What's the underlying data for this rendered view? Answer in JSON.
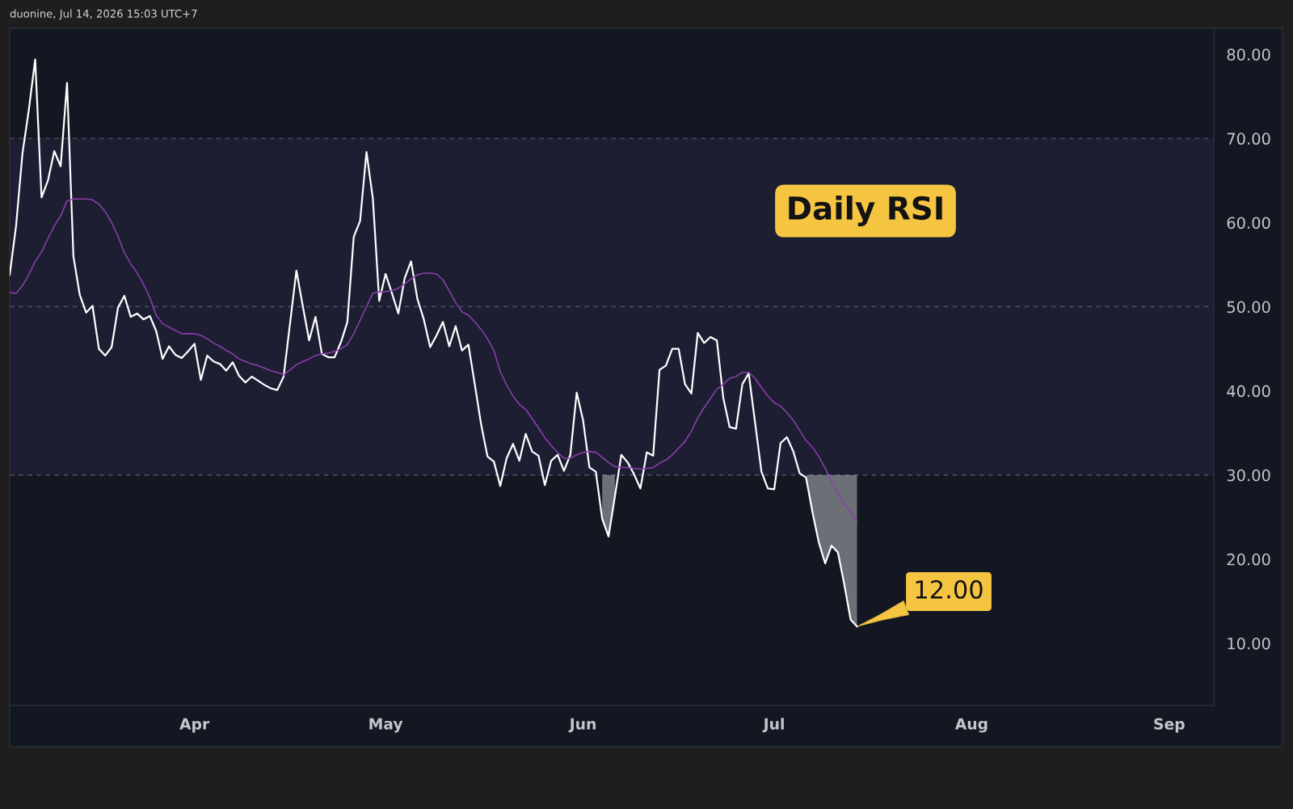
{
  "chart_data": {
    "type": "line",
    "title": "Daily RSI",
    "annotations": [
      "duonine, Jul 14, 2026 15:03 UTC+7",
      {
        "text": "12.00",
        "x": "2026-07-14",
        "y": 12.0
      }
    ],
    "x": [
      "2026-03-03",
      "2026-03-04",
      "2026-03-05",
      "2026-03-06",
      "2026-03-07",
      "2026-03-08",
      "2026-03-09",
      "2026-03-10",
      "2026-03-11",
      "2026-03-12",
      "2026-03-13",
      "2026-03-14",
      "2026-03-15",
      "2026-03-16",
      "2026-03-17",
      "2026-03-18",
      "2026-03-19",
      "2026-03-20",
      "2026-03-21",
      "2026-03-22",
      "2026-03-23",
      "2026-03-24",
      "2026-03-25",
      "2026-03-26",
      "2026-03-27",
      "2026-03-28",
      "2026-03-29",
      "2026-03-30",
      "2026-03-31",
      "2026-04-01",
      "2026-04-02",
      "2026-04-03",
      "2026-04-04",
      "2026-04-05",
      "2026-04-06",
      "2026-04-07",
      "2026-04-08",
      "2026-04-09",
      "2026-04-10",
      "2026-04-11",
      "2026-04-12",
      "2026-04-13",
      "2026-04-14",
      "2026-04-15",
      "2026-04-16",
      "2026-04-17",
      "2026-04-18",
      "2026-04-19",
      "2026-04-20",
      "2026-04-21",
      "2026-04-22",
      "2026-04-23",
      "2026-04-24",
      "2026-04-25",
      "2026-04-26",
      "2026-04-27",
      "2026-04-28",
      "2026-04-29",
      "2026-04-30",
      "2026-05-01",
      "2026-05-02",
      "2026-05-03",
      "2026-05-04",
      "2026-05-05",
      "2026-05-06",
      "2026-05-07",
      "2026-05-08",
      "2026-05-09",
      "2026-05-10",
      "2026-05-11",
      "2026-05-12",
      "2026-05-13",
      "2026-05-14",
      "2026-05-15",
      "2026-05-16",
      "2026-05-17",
      "2026-05-18",
      "2026-05-19",
      "2026-05-20",
      "2026-05-21",
      "2026-05-22",
      "2026-05-23",
      "2026-05-24",
      "2026-05-25",
      "2026-05-26",
      "2026-05-27",
      "2026-05-28",
      "2026-05-29",
      "2026-05-30",
      "2026-05-31",
      "2026-06-01",
      "2026-06-02",
      "2026-06-03",
      "2026-06-04",
      "2026-06-05",
      "2026-06-06",
      "2026-06-07",
      "2026-06-08",
      "2026-06-09",
      "2026-06-10",
      "2026-06-11",
      "2026-06-12",
      "2026-06-13",
      "2026-06-14",
      "2026-06-15",
      "2026-06-16",
      "2026-06-17",
      "2026-06-18",
      "2026-06-19",
      "2026-06-20",
      "2026-06-21",
      "2026-06-22",
      "2026-06-23",
      "2026-06-24",
      "2026-06-25",
      "2026-06-26",
      "2026-06-27",
      "2026-06-28",
      "2026-06-29",
      "2026-06-30",
      "2026-07-01",
      "2026-07-02",
      "2026-07-03",
      "2026-07-04",
      "2026-07-05",
      "2026-07-06",
      "2026-07-07",
      "2026-07-08",
      "2026-07-09",
      "2026-07-10",
      "2026-07-11",
      "2026-07-12",
      "2026-07-13",
      "2026-07-14"
    ],
    "series": [
      {
        "color": "#ffffff",
        "values": [
          53.8,
          59.6,
          68.2,
          73.4,
          79.4,
          63.0,
          65.0,
          68.5,
          66.7,
          76.6,
          56.0,
          51.4,
          49.3,
          50.1,
          45.0,
          44.2,
          45.2,
          49.9,
          51.3,
          48.8,
          49.2,
          48.5,
          48.9,
          47.1,
          43.8,
          45.3,
          44.3,
          43.9,
          44.7,
          45.6,
          41.3,
          44.2,
          43.5,
          43.2,
          42.4,
          43.4,
          41.8,
          41.0,
          41.7,
          41.2,
          40.7,
          40.3,
          40.1,
          41.7,
          48.0,
          54.3,
          50.1,
          46.0,
          48.8,
          44.4,
          44.0,
          44.0,
          45.8,
          48.2,
          58.3,
          60.2,
          68.4,
          62.9,
          50.7,
          53.9,
          51.6,
          49.2,
          53.4,
          55.4,
          50.9,
          48.5,
          45.2,
          46.6,
          48.2,
          45.3,
          47.7,
          44.8,
          45.5,
          40.8,
          36.0,
          32.2,
          31.6,
          28.7,
          32.0,
          33.7,
          31.7,
          34.9,
          32.8,
          32.3,
          28.8,
          31.7,
          32.4,
          30.5,
          32.4,
          39.8,
          36.5,
          30.9,
          30.4,
          24.8,
          22.7,
          27.5,
          32.4,
          31.5,
          30.1,
          28.4,
          32.7,
          32.3,
          42.5,
          43.0,
          45.0,
          45.0,
          40.8,
          39.7,
          46.9,
          45.7,
          46.4,
          46.0,
          39.2,
          35.7,
          35.5,
          40.8,
          42.1,
          36.2,
          30.4,
          28.4,
          28.3,
          33.8,
          34.5,
          32.8,
          30.2,
          29.7,
          25.6,
          22.0,
          19.5,
          21.6,
          20.8,
          17.0,
          12.8,
          12.0
        ],
        "lower": [
          null,
          null,
          null,
          null,
          null,
          null,
          null,
          null,
          null,
          null,
          null,
          null,
          null,
          null,
          null,
          null,
          null,
          null,
          null,
          null,
          null,
          null,
          null,
          null,
          null,
          null,
          null,
          null,
          null,
          null,
          null,
          null,
          null,
          null,
          null,
          null,
          null,
          null,
          null,
          null,
          null,
          null,
          null,
          null,
          null,
          null,
          null,
          null,
          null,
          null,
          null,
          null,
          null,
          null,
          null,
          null,
          null,
          null,
          null,
          null,
          null,
          null,
          null,
          null,
          null,
          null,
          null,
          null,
          null,
          null,
          null,
          null,
          null,
          null,
          null,
          null,
          null,
          null,
          null,
          null,
          null,
          null,
          null,
          null,
          null,
          null,
          null,
          null,
          null,
          null,
          null,
          null,
          null,
          24.8,
          22.7,
          27.5,
          null,
          null,
          null,
          null,
          null,
          null,
          null,
          null,
          null,
          null,
          null,
          null,
          null,
          null,
          null,
          null,
          null,
          null,
          null,
          null,
          null,
          null,
          null,
          null,
          null,
          null,
          null,
          null,
          null,
          29.7,
          25.6,
          22.0,
          19.5,
          21.6,
          20.8,
          17.0,
          12.8,
          12.0
        ],
        "upper": [
          null,
          null,
          null,
          null,
          null,
          null,
          null,
          null,
          null,
          null,
          null,
          null,
          null,
          null,
          null,
          null,
          null,
          null,
          null,
          null,
          null,
          null,
          null,
          null,
          null,
          null,
          null,
          null,
          null,
          null,
          null,
          null,
          null,
          null,
          null,
          null,
          null,
          null,
          null,
          null,
          null,
          null,
          null,
          null,
          null,
          null,
          null,
          null,
          null,
          null,
          null,
          null,
          null,
          null,
          null,
          null,
          null,
          null,
          null,
          null,
          null,
          null,
          null,
          null,
          null,
          null,
          null,
          null,
          null,
          null,
          null,
          null,
          null,
          null,
          null,
          null,
          null,
          null,
          null,
          null,
          null,
          null,
          null,
          null,
          null,
          null,
          null,
          null,
          null,
          null,
          null,
          null,
          null,
          30,
          30,
          30,
          null,
          null,
          null,
          null,
          null,
          null,
          null,
          null,
          null,
          null,
          null,
          null,
          null,
          null,
          null,
          null,
          null,
          null,
          null,
          null,
          null,
          null,
          null,
          null,
          null,
          null,
          null,
          null,
          null,
          30,
          30,
          30,
          30,
          30,
          30,
          30,
          30,
          30
        ]
      },
      {
        "color": "#8c3fae",
        "values": [
          51.7,
          51.6,
          52.5,
          53.8,
          55.4,
          56.5,
          58.1,
          59.6,
          60.8,
          62.6,
          62.8,
          62.8,
          62.8,
          62.7,
          62.2,
          61.3,
          60.0,
          58.4,
          56.4,
          55.1,
          54.0,
          52.7,
          51.1,
          49.0,
          48.0,
          47.6,
          47.2,
          46.8,
          46.8,
          46.8,
          46.6,
          46.2,
          45.7,
          45.3,
          44.8,
          44.4,
          43.8,
          43.5,
          43.2,
          43.0,
          42.7,
          42.4,
          42.2,
          41.9,
          42.5,
          43.1,
          43.5,
          43.8,
          44.2,
          44.4,
          44.5,
          44.7,
          45.0,
          45.5,
          46.8,
          48.4,
          50.0,
          51.6,
          51.8,
          51.8,
          51.9,
          52.2,
          52.7,
          53.3,
          53.8,
          54.0,
          54.0,
          53.9,
          53.2,
          51.9,
          50.5,
          49.4,
          49.0,
          48.2,
          47.3,
          46.2,
          44.8,
          42.3,
          40.7,
          39.4,
          38.4,
          37.8,
          36.7,
          35.6,
          34.4,
          33.5,
          32.7,
          32.0,
          32.0,
          32.4,
          32.7,
          32.8,
          32.7,
          32.1,
          31.5,
          31.0,
          30.9,
          30.9,
          30.8,
          30.7,
          30.8,
          30.9,
          31.4,
          31.8,
          32.4,
          33.2,
          34.0,
          35.2,
          36.8,
          38.0,
          39.1,
          40.2,
          40.8,
          41.5,
          41.7,
          42.2,
          42.2,
          41.5,
          40.4,
          39.4,
          38.6,
          38.2,
          37.4,
          36.5,
          35.3,
          34.1,
          33.3,
          32.2,
          30.8,
          29.2,
          27.8,
          26.6,
          25.5,
          24.5
        ]
      }
    ],
    "xlim": [
      "2026-03-03",
      "2026-09-08"
    ],
    "xticks": [
      {
        "value": "2026-04-01",
        "label": "Apr"
      },
      {
        "value": "2026-05-01",
        "label": "May"
      },
      {
        "value": "2026-06-01",
        "label": "Jun"
      },
      {
        "value": "2026-07-01",
        "label": "Jul"
      },
      {
        "value": "2026-08-01",
        "label": "Aug"
      },
      {
        "value": "2026-09-01",
        "label": "Sep"
      }
    ],
    "ylim": [
      2.6,
      83.1
    ],
    "yticks": [
      {
        "value": 10,
        "label": "10.00"
      },
      {
        "value": 20,
        "label": "20.00"
      },
      {
        "value": 30,
        "label": "30.00"
      },
      {
        "value": 40,
        "label": "40.00"
      },
      {
        "value": 50,
        "label": "50.00"
      },
      {
        "value": 60,
        "label": "60.00"
      },
      {
        "value": 70,
        "label": "70.00"
      },
      {
        "value": 80,
        "label": "80.00"
      }
    ],
    "bands": [
      {
        "axis": "y",
        "from": 30,
        "to": 70,
        "color": "#1e1e33"
      }
    ],
    "ref_lines": [
      {
        "axis": "y",
        "value": 70,
        "color": "#50536a",
        "line_style": "dashed"
      },
      {
        "axis": "y",
        "value": 50,
        "color": "#50536a",
        "line_style": "dashed"
      },
      {
        "axis": "y",
        "value": 30,
        "color": "#50536a",
        "line_style": "dashed"
      }
    ]
  }
}
